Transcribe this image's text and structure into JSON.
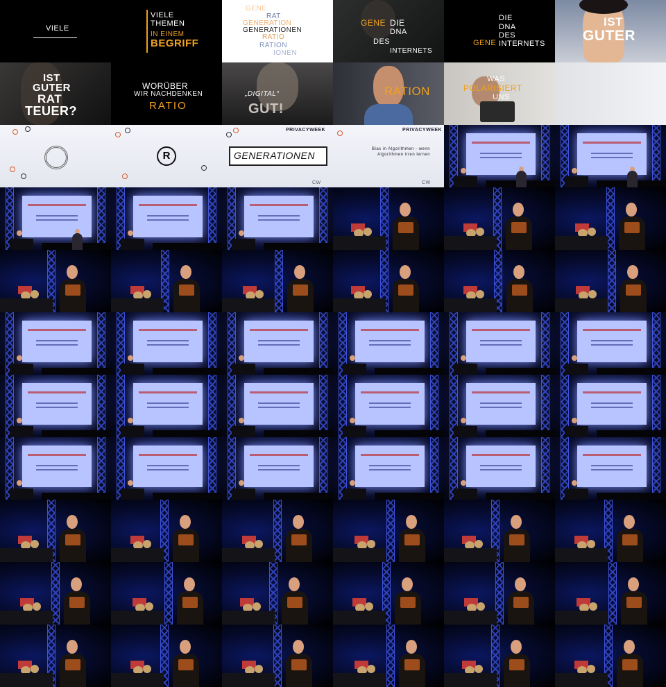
{
  "intro": {
    "viele": "VIELE",
    "viele_themen": "VIELE",
    "themen": "THEMEN",
    "in_einem": "IN EINEM",
    "begriff": "BEGRIFF",
    "word_list": [
      "GENE",
      "RAT",
      "GENERATION",
      "GENERATIONEN",
      "RATIO",
      "RATION",
      "IONEN"
    ],
    "gene": "GENE",
    "die": "DIE",
    "dna": "DNA",
    "des": "DES",
    "internets": "INTERNETS",
    "ist": "IST",
    "guter": "GUTER",
    "rat": "RAT",
    "teuer": "TEUER?",
    "woruber": "WORÜBER",
    "wir_nachdenken": "WIR NACHDENKEN",
    "ratio": "RATIO",
    "digital": "„DIGITAL“",
    "gut": "GUT!",
    "ration": "RATION",
    "was": "WAS",
    "polariesiert": "POLARISIERT",
    "uns": "UNS"
  },
  "privacyweek": {
    "brand": "PRIVACYWEEK",
    "generationen": "GENERATIONEN",
    "talk_title_1": "Bias in Algorithmen - wenn",
    "talk_title_2": "Algorithmen irren lernen",
    "logo_letter": "R",
    "footer": "CW"
  },
  "colors": {
    "accent_orange": "#f0a020",
    "stage_blue": "#1b2a70",
    "screen": "#b8c4ff"
  }
}
